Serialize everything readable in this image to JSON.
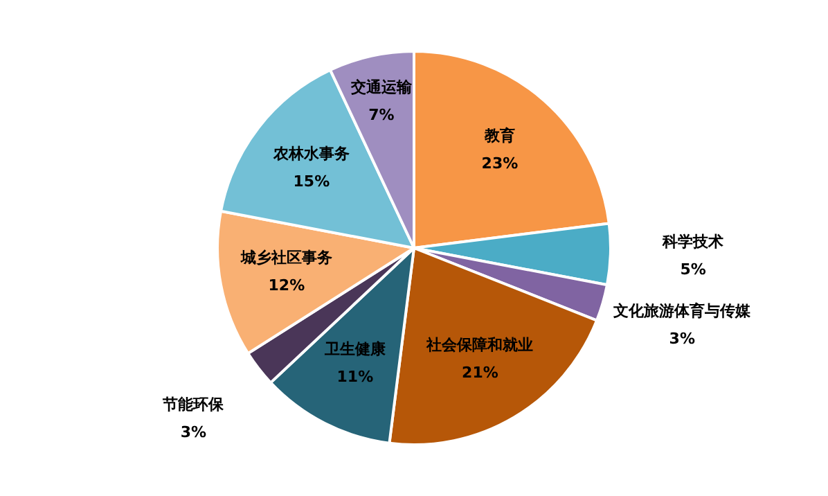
{
  "chart_data": {
    "type": "pie",
    "categories": [
      "教育",
      "科学技术",
      "文化旅游体育与传媒",
      "社会保障和就业",
      "卫生健康",
      "节能环保",
      "城乡社区事务",
      "农林水事务",
      "交通运输"
    ],
    "values": [
      23,
      5,
      3,
      21,
      11,
      3,
      12,
      15,
      7
    ],
    "value_labels": [
      "23%",
      "5%",
      "3%",
      "21%",
      "11%",
      "3%",
      "12%",
      "15%",
      "7%"
    ],
    "colors": [
      "#f79646",
      "#4bacc6",
      "#8064a2",
      "#b65708",
      "#266478",
      "#4a3658",
      "#f9b073",
      "#73c0d6",
      "#9f8ec0"
    ],
    "legend": false
  }
}
